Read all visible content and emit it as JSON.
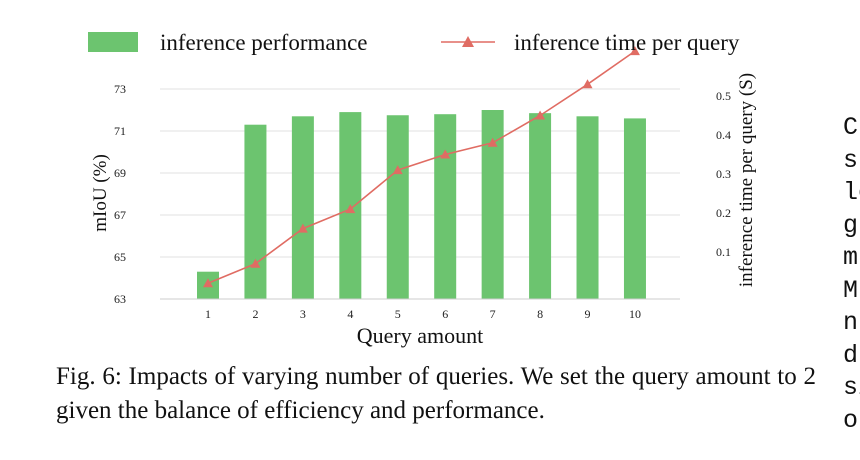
{
  "chart_data": {
    "type": "bar+line",
    "categories": [
      "1",
      "2",
      "3",
      "4",
      "5",
      "6",
      "7",
      "8",
      "9",
      "10"
    ],
    "xlabel": "Query amount",
    "series": [
      {
        "name": "inference performance",
        "type": "bar",
        "axis": "left",
        "color": "#6cc46f",
        "values": [
          64.3,
          71.3,
          71.7,
          71.9,
          71.75,
          71.8,
          72.0,
          71.85,
          71.7,
          71.6
        ]
      },
      {
        "name": "inference time per query",
        "type": "line",
        "axis": "right",
        "color": "#e06c63",
        "marker": "triangle",
        "values": [
          0.02,
          0.07,
          0.16,
          0.21,
          0.31,
          0.35,
          0.38,
          0.45,
          0.53,
          0.615
        ]
      }
    ],
    "left_axis": {
      "label": "mIoU (%)",
      "ylim": [
        63,
        73
      ],
      "ticks": [
        "63",
        "65",
        "67",
        "69",
        "71",
        "73"
      ]
    },
    "right_axis": {
      "label": "inference time per query (S)",
      "ticks": [
        "0.1",
        "0.2",
        "0.3",
        "0.4",
        "0.5"
      ]
    },
    "grid": "horizontal",
    "legend": "top"
  },
  "caption": "Fig. 6: Impacts of varying number of queries. We set the query amount to 2 given the balance of efficiency and performance.",
  "side_text": "C\nsl\nle\ng\nm\nM\nn\nd\nsi\no"
}
